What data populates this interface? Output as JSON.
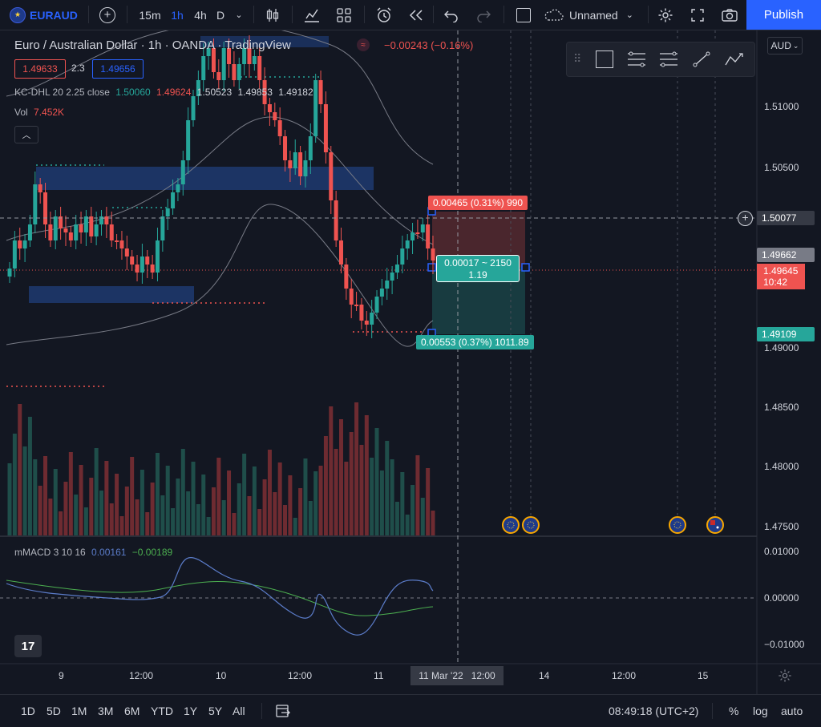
{
  "toolbar": {
    "symbol": "EURAUD",
    "intervals": [
      "15m",
      "1h",
      "4h",
      "D"
    ],
    "active_interval": "1h",
    "layout_name": "Unnamed",
    "publish_label": "Publish"
  },
  "legend": {
    "title": "Euro / Australian Dollar · 1h · OANDA · TradingView",
    "change": "−0.00243 (−0.16%)",
    "sell_price": "1.49633",
    "spread": "2.3",
    "buy_price": "1.49656",
    "kc_label": "KC-DHL 20 2.25 close",
    "kc_v1": "1.50060",
    "kc_v2": "1.49624",
    "kc_v3": "1.50523",
    "kc_v4": "1.49853",
    "kc_v5": "1.49182",
    "vol_label": "Vol",
    "vol_value": "7.452K",
    "macd_label": "mMACD 3 10 16",
    "macd_v1": "0.00161",
    "macd_v2": "−0.00189"
  },
  "price_axis": {
    "currency": "AUD",
    "ticks": [
      "1.51000",
      "1.50500",
      "1.49000",
      "1.48500",
      "1.48000",
      "1.47500"
    ],
    "crosshair_price": "1.50077",
    "last_price_grey": "1.49662",
    "last_price_red": "1.49645",
    "countdown": "10:42",
    "tp_price": "1.49109",
    "macd_ticks": [
      "0.01000",
      "0.00000",
      "−0.01000"
    ]
  },
  "position_tool": {
    "stop_label": "0.00465 (0.31%) 990",
    "center_label_1": "0.00017 ~ 2150",
    "center_label_2": "1.19",
    "target_label": "0.00553 (0.37%) 1011.89"
  },
  "time_axis": {
    "ticks": [
      "9",
      "12:00",
      "10",
      "12:00",
      "11",
      "14",
      "12:00",
      "15"
    ],
    "crosshair_time": "11 Mar '22   12:00"
  },
  "bottom": {
    "ranges": [
      "1D",
      "5D",
      "1M",
      "3M",
      "6M",
      "YTD",
      "1Y",
      "5Y",
      "All"
    ],
    "clock": "08:49:18 (UTC+2)",
    "percent": "%",
    "log": "log",
    "auto": "auto"
  },
  "colors": {
    "up": "#26a69a",
    "down": "#ef5350",
    "accent": "#2962ff",
    "zone": "#1e3a70"
  }
}
